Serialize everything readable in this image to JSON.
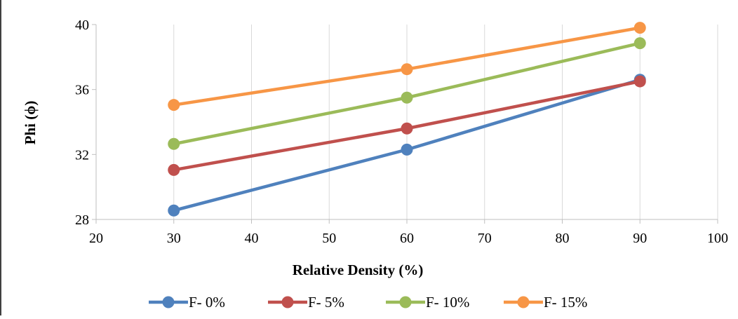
{
  "chart_data": {
    "type": "line",
    "title": "",
    "xlabel": "Relative Density (%)",
    "ylabel": "Phi (ϕ)",
    "xlim": [
      20,
      100
    ],
    "ylim": [
      28,
      40
    ],
    "x_ticks": [
      20,
      30,
      40,
      50,
      60,
      70,
      80,
      90,
      100
    ],
    "y_ticks": [
      28,
      32,
      36,
      40
    ],
    "x_tick_labels": [
      "20",
      "30",
      "40",
      "50",
      "60",
      "70",
      "80",
      "90",
      "100"
    ],
    "y_tick_labels": [
      "28",
      "32",
      "36",
      "40"
    ],
    "grid": "vertical",
    "legend_position": "bottom",
    "x": [
      30,
      60,
      90
    ],
    "series": [
      {
        "name": "F- 0%",
        "color": "#4f81bd",
        "values": [
          28.55,
          32.3,
          36.6
        ]
      },
      {
        "name": "F- 5%",
        "color": "#c0504d",
        "values": [
          31.05,
          33.6,
          36.5
        ]
      },
      {
        "name": "F- 10%",
        "color": "#9bbb59",
        "values": [
          32.65,
          35.5,
          38.85
        ]
      },
      {
        "name": "F- 15%",
        "color": "#f79646",
        "values": [
          35.05,
          37.25,
          39.8
        ]
      }
    ]
  }
}
